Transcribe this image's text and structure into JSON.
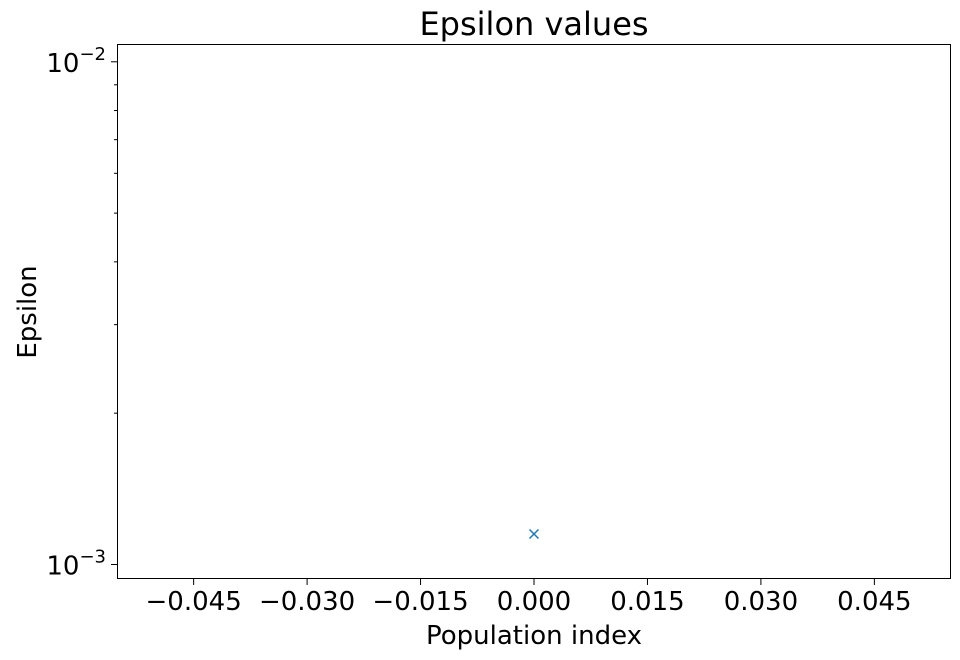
{
  "chart_data": {
    "type": "scatter",
    "title": "Epsilon values",
    "xlabel": "Population index",
    "ylabel": "Epsilon",
    "yscale": "log",
    "xlim": [
      -0.055,
      0.055
    ],
    "ylim": [
      0.00094,
      0.0108
    ],
    "x_ticks": [
      -0.045,
      -0.03,
      -0.015,
      0.0,
      0.015,
      0.03,
      0.045
    ],
    "x_tick_labels": [
      "−0.045",
      "−0.030",
      "−0.015",
      "0.000",
      "0.015",
      "0.030",
      "0.045"
    ],
    "y_major_ticks": [
      {
        "value": 0.001,
        "base": "10",
        "exponent": "−3"
      },
      {
        "value": 0.01,
        "base": "10",
        "exponent": "−2"
      }
    ],
    "y_minor_ticks": [
      0.002,
      0.003,
      0.004,
      0.005,
      0.006,
      0.007,
      0.008,
      0.009
    ],
    "grid": false,
    "series": [
      {
        "marker": "x",
        "color": "#1f77b4",
        "points": [
          {
            "x": 0.0,
            "y": 0.00115
          }
        ]
      }
    ]
  }
}
